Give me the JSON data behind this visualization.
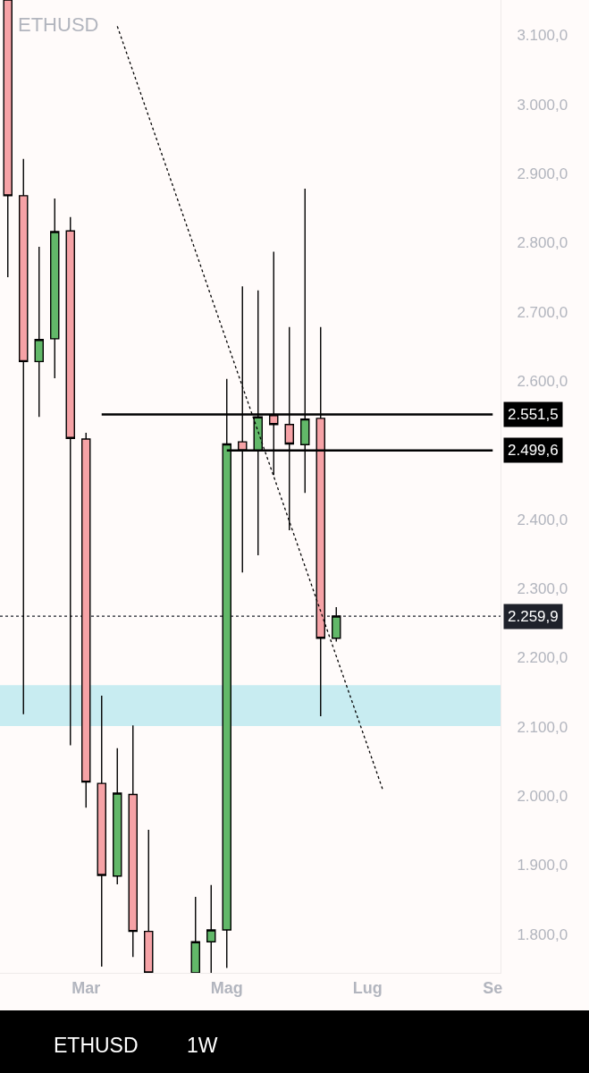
{
  "chart_data": {
    "type": "candlestick",
    "title": "ETHUSD",
    "categories": [
      null,
      null,
      null,
      null,
      null,
      "Mar",
      null,
      null,
      null,
      null,
      null,
      null,
      null,
      null,
      "Mag",
      null,
      null,
      null,
      null,
      null,
      null,
      null,
      null,
      "Lug",
      null,
      null,
      null,
      null,
      null,
      null,
      null,
      "Se"
    ],
    "ohlc": [
      [
        3151,
        3151,
        2750,
        2868
      ],
      [
        2868,
        2921,
        2118,
        2628
      ],
      [
        2628,
        2794,
        2548,
        2660
      ],
      [
        2661,
        2864,
        2604,
        2816
      ],
      [
        2817,
        2837,
        2073,
        2517
      ],
      [
        2516,
        2525,
        1983,
        2020
      ],
      [
        2018,
        2145,
        1753,
        1885
      ],
      [
        1884,
        2069,
        1872,
        2004
      ],
      [
        2002,
        2102,
        1767,
        1804
      ],
      [
        1804,
        1951,
        1744,
        1744
      ],
      null,
      null,
      [
        1744,
        1854,
        1744,
        1789
      ],
      [
        1789,
        1871,
        1744,
        1806
      ],
      [
        1806,
        2603,
        1751,
        2509
      ],
      [
        2512,
        2737,
        2323,
        2499
      ],
      [
        2499,
        2731,
        2348,
        2548
      ],
      [
        2550,
        2787,
        2464,
        2537
      ],
      [
        2537,
        2678,
        2384,
        2509
      ],
      [
        2508,
        2878,
        2438,
        2545
      ],
      [
        2546,
        2678,
        2115,
        2228
      ],
      [
        2228,
        2273,
        2223,
        2259.9
      ],
      null,
      null,
      null,
      null,
      null,
      null,
      null,
      null,
      null,
      null
    ],
    "colors": [
      "#f6a2a6",
      "#f6a2a6",
      "#62b869",
      "#62b869",
      "#f6a2a6",
      "#f6a2a6",
      "#f6a2a6",
      "#62b869",
      "#f6a2a6",
      "#f6a2a6",
      null,
      null,
      "#62b869",
      "#62b869",
      "#62b869",
      "#f6a2a6",
      "#62b869",
      "#f6a2a6",
      "#f6a2a6",
      "#62b869",
      "#f6a2a6",
      "#62b869",
      null,
      null,
      null,
      null,
      null,
      null,
      null,
      null,
      null,
      null
    ],
    "series": [
      {
        "type": "line",
        "color": "#000000",
        "line_style": "solid",
        "values": [
          null,
          null,
          null,
          null,
          null,
          null,
          2551.5,
          2551.5,
          2551.5,
          2551.5,
          2551.5,
          2551.5,
          2551.5,
          2551.5,
          2551.5,
          2551.5,
          2551.5,
          2551.5,
          2551.5,
          2551.5,
          2551.5,
          2551.5,
          2551.5,
          2551.5,
          2551.5,
          2551.5,
          2551.5,
          2551.5,
          2551.5,
          2551.5,
          2551.5,
          2551.5
        ],
        "value_labels": [
          null,
          null,
          null,
          null,
          null,
          null,
          null,
          null,
          null,
          null,
          null,
          null,
          null,
          null,
          null,
          null,
          null,
          null,
          null,
          null,
          null,
          null,
          null,
          null,
          null,
          null,
          null,
          null,
          null,
          null,
          null,
          "2.551,5"
        ]
      },
      {
        "type": "line",
        "color": "#000000",
        "line_style": "solid",
        "values": [
          null,
          null,
          null,
          null,
          null,
          null,
          null,
          null,
          null,
          null,
          null,
          null,
          null,
          null,
          2499.6,
          2499.6,
          2499.6,
          2499.6,
          2499.6,
          2499.6,
          2499.6,
          2499.6,
          2499.6,
          2499.6,
          2499.6,
          2499.6,
          2499.6,
          2499.6,
          2499.6,
          2499.6,
          2499.6,
          2499.6
        ],
        "value_labels": [
          null,
          null,
          null,
          null,
          null,
          null,
          null,
          null,
          null,
          null,
          null,
          null,
          null,
          null,
          null,
          null,
          null,
          null,
          null,
          null,
          null,
          null,
          null,
          null,
          null,
          null,
          null,
          null,
          null,
          null,
          null,
          "2.499,6"
        ]
      },
      {
        "type": "line",
        "color": "#000000",
        "line_style": "dotted",
        "values": [
          null,
          null,
          null,
          null,
          null,
          null,
          null,
          3113,
          3048,
          2983,
          2918,
          2853,
          2788,
          2722,
          2657,
          2592,
          2527,
          2462,
          2397,
          2332,
          2267,
          2202,
          2137,
          2072,
          2007,
          null,
          null,
          null,
          null,
          null,
          null,
          null
        ]
      }
    ],
    "ref_lines": [
      {
        "axis": "y",
        "value": 2259.9,
        "label": "2.259,9",
        "color": "#1f222b",
        "line_style": "dotted"
      }
    ],
    "bands": [
      {
        "axis": "y",
        "from": 2101,
        "to": 2160,
        "color": "#c8ecf1"
      }
    ],
    "ylim": [
      1744,
      3151
    ],
    "yticks": [
      {
        "value": 1800,
        "label": "1.800,0"
      },
      {
        "value": 1900,
        "label": "1.900,0"
      },
      {
        "value": 2000,
        "label": "2.000,0"
      },
      {
        "value": 2100,
        "label": "2.100,0"
      },
      {
        "value": 2200,
        "label": "2.200,0"
      },
      {
        "value": 2300,
        "label": "2.300,0"
      },
      {
        "value": 2400,
        "label": "2.400,0"
      },
      {
        "value": 2600,
        "label": "2.600,0"
      },
      {
        "value": 2700,
        "label": "2.700,0"
      },
      {
        "value": 2800,
        "label": "2.800,0"
      },
      {
        "value": 2900,
        "label": "2.900,0"
      },
      {
        "value": 3000,
        "label": "3.000,0"
      },
      {
        "value": 3100,
        "label": "3.100,0"
      }
    ],
    "annotations": [
      "ETHUSD",
      "1W"
    ]
  }
}
